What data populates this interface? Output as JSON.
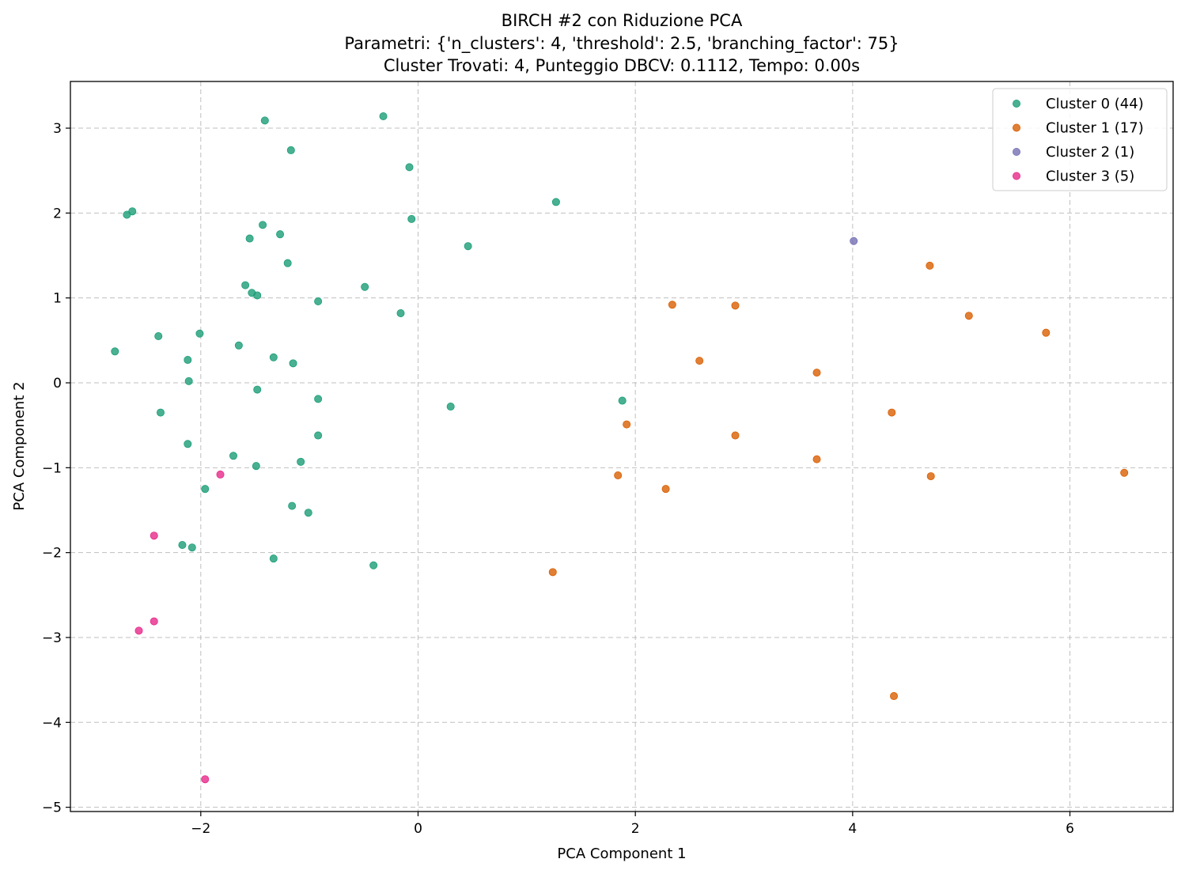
{
  "chart_data": {
    "type": "scatter",
    "title": [
      "BIRCH #2 con Riduzione PCA",
      "Parametri: {'n_clusters': 4, 'threshold': 2.5, 'branching_factor': 75}",
      "Cluster Trovati: 4, Punteggio DBCV: 0.1112, Tempo: 0.00s"
    ],
    "xlabel": "PCA Component 1",
    "ylabel": "PCA Component 2",
    "xlim": [
      -3.2,
      6.95
    ],
    "ylim": [
      -5.05,
      3.55
    ],
    "xticks": [
      -2,
      0,
      2,
      4,
      6
    ],
    "yticks": [
      3,
      2,
      1,
      0,
      -1,
      -2,
      -3,
      -4,
      -5
    ],
    "grid": true,
    "legend": "top-right",
    "series": [
      {
        "name": "Cluster 0 (44)",
        "color": "#1b9e77",
        "points": [
          [
            -1.41,
            3.09
          ],
          [
            -0.32,
            3.14
          ],
          [
            -1.17,
            2.74
          ],
          [
            -0.08,
            2.54
          ],
          [
            -2.68,
            1.98
          ],
          [
            -2.63,
            2.02
          ],
          [
            1.27,
            2.13
          ],
          [
            -1.43,
            1.86
          ],
          [
            -1.55,
            1.7
          ],
          [
            -1.27,
            1.75
          ],
          [
            -0.06,
            1.93
          ],
          [
            0.46,
            1.61
          ],
          [
            -1.2,
            1.41
          ],
          [
            -1.59,
            1.15
          ],
          [
            -1.53,
            1.06
          ],
          [
            -1.48,
            1.03
          ],
          [
            -0.49,
            1.13
          ],
          [
            -0.92,
            0.96
          ],
          [
            -0.16,
            0.82
          ],
          [
            -2.79,
            0.37
          ],
          [
            -2.39,
            0.55
          ],
          [
            -2.01,
            0.58
          ],
          [
            -1.65,
            0.44
          ],
          [
            -1.33,
            0.3
          ],
          [
            -2.12,
            0.27
          ],
          [
            -1.15,
            0.23
          ],
          [
            -2.11,
            0.02
          ],
          [
            -1.48,
            -0.08
          ],
          [
            -0.92,
            -0.19
          ],
          [
            -2.37,
            -0.35
          ],
          [
            0.3,
            -0.28
          ],
          [
            1.88,
            -0.21
          ],
          [
            -0.92,
            -0.62
          ],
          [
            -2.12,
            -0.72
          ],
          [
            -1.7,
            -0.86
          ],
          [
            -1.49,
            -0.98
          ],
          [
            -1.08,
            -0.93
          ],
          [
            -1.96,
            -1.25
          ],
          [
            -1.16,
            -1.45
          ],
          [
            -1.01,
            -1.53
          ],
          [
            -2.17,
            -1.91
          ],
          [
            -2.08,
            -1.94
          ],
          [
            -1.33,
            -2.07
          ],
          [
            -0.41,
            -2.15
          ]
        ]
      },
      {
        "name": "Cluster 1 (17)",
        "color": "#d95f02",
        "points": [
          [
            4.71,
            1.38
          ],
          [
            2.34,
            0.92
          ],
          [
            2.92,
            0.91
          ],
          [
            5.07,
            0.79
          ],
          [
            5.78,
            0.59
          ],
          [
            2.59,
            0.26
          ],
          [
            3.67,
            0.12
          ],
          [
            4.36,
            -0.35
          ],
          [
            1.92,
            -0.49
          ],
          [
            2.92,
            -0.62
          ],
          [
            3.67,
            -0.9
          ],
          [
            1.84,
            -1.09
          ],
          [
            4.72,
            -1.1
          ],
          [
            6.5,
            -1.06
          ],
          [
            2.28,
            -1.25
          ],
          [
            1.24,
            -2.23
          ],
          [
            4.38,
            -3.69
          ]
        ]
      },
      {
        "name": "Cluster 2 (1)",
        "color": "#7570b3",
        "points": [
          [
            4.01,
            1.67
          ]
        ]
      },
      {
        "name": "Cluster 3 (5)",
        "color": "#e7298a",
        "points": [
          [
            -1.82,
            -1.08
          ],
          [
            -2.43,
            -1.8
          ],
          [
            -2.43,
            -2.81
          ],
          [
            -2.57,
            -2.92
          ],
          [
            -1.96,
            -4.67
          ]
        ]
      }
    ]
  }
}
